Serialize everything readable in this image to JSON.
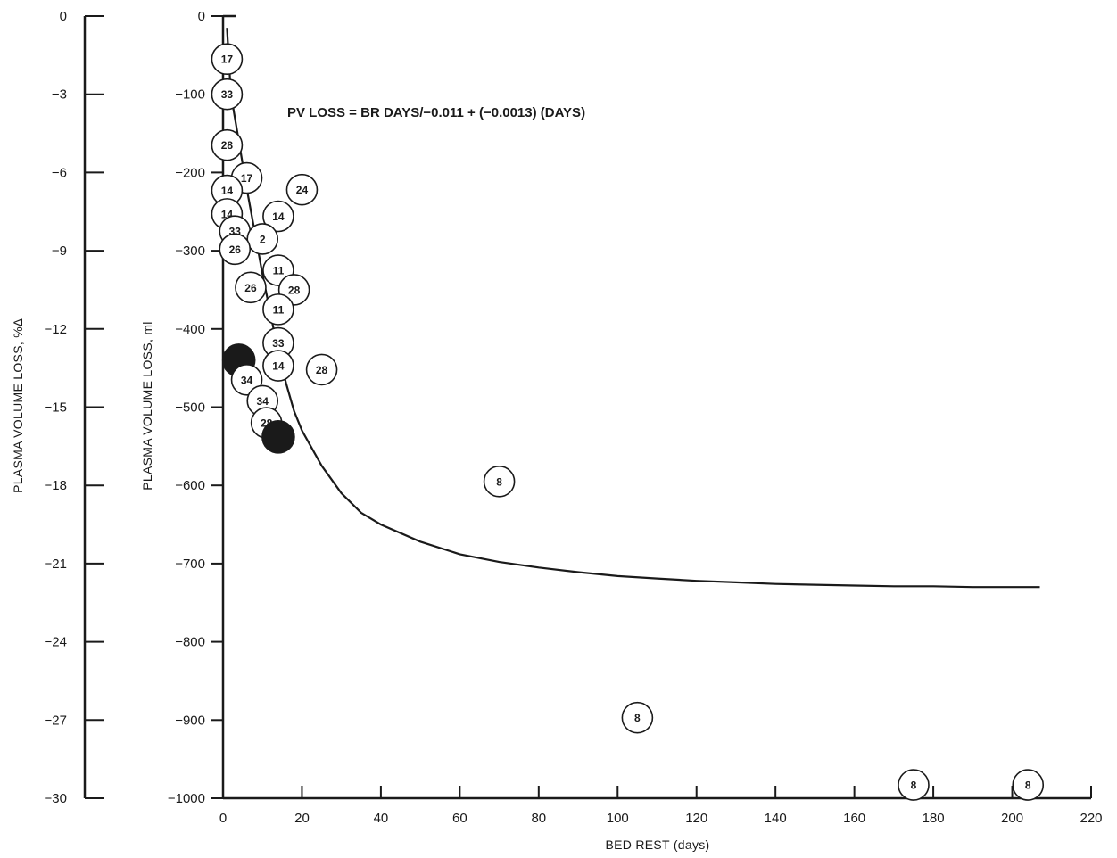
{
  "chart_data": {
    "type": "scatter",
    "title": "",
    "xlabel": "BED REST (days)",
    "ylabel": "PLASMA VOLUME LOSS, ml",
    "ylabel_secondary": "PLASMA VOLUME LOSS, %∆",
    "equation": "PV LOSS = BR DAYS/−0.011 + (−0.0013) (DAYS)",
    "xlim": [
      0,
      220
    ],
    "ylim": [
      -1000,
      0
    ],
    "ylim_secondary": [
      -30,
      0
    ],
    "x_ticks": [
      "0",
      "20",
      "40",
      "60",
      "80",
      "100",
      "120",
      "140",
      "160",
      "180",
      "200",
      "220"
    ],
    "y_ticks": [
      "0",
      "−100",
      "−200",
      "−300",
      "−400",
      "−500",
      "−600",
      "−700",
      "−800",
      "−900",
      "−1000"
    ],
    "y2_ticks": [
      "0",
      "−3",
      "−6",
      "−9",
      "−12",
      "−15",
      "−18",
      "−21",
      "−24",
      "−27",
      "−30"
    ],
    "grid": false,
    "legend": "none",
    "line_color": "#1a1a1a",
    "fill_color_solid": "#1a1a1a",
    "points": [
      {
        "x": 1,
        "y": -55,
        "label": "17",
        "filled": false
      },
      {
        "x": 1,
        "y": -100,
        "label": "33",
        "filled": false
      },
      {
        "x": 1,
        "y": -165,
        "label": "28",
        "filled": false
      },
      {
        "x": 6,
        "y": -207,
        "label": "17",
        "filled": false
      },
      {
        "x": 1,
        "y": -223,
        "label": "14",
        "filled": false
      },
      {
        "x": 20,
        "y": -222,
        "label": "24",
        "filled": false
      },
      {
        "x": 1,
        "y": -253,
        "label": "14",
        "filled": false
      },
      {
        "x": 14,
        "y": -256,
        "label": "14",
        "filled": false
      },
      {
        "x": 3,
        "y": -275,
        "label": "33",
        "filled": false
      },
      {
        "x": 10,
        "y": -285,
        "label": "2",
        "filled": false
      },
      {
        "x": 3,
        "y": -298,
        "label": "26",
        "filled": false
      },
      {
        "x": 14,
        "y": -325,
        "label": "11",
        "filled": false
      },
      {
        "x": 7,
        "y": -347,
        "label": "26",
        "filled": false
      },
      {
        "x": 18,
        "y": -350,
        "label": "28",
        "filled": false
      },
      {
        "x": 14,
        "y": -375,
        "label": "11",
        "filled": false
      },
      {
        "x": 14,
        "y": -418,
        "label": "33",
        "filled": false
      },
      {
        "x": 4,
        "y": -440,
        "label": "",
        "filled": true
      },
      {
        "x": 14,
        "y": -447,
        "label": "14",
        "filled": false
      },
      {
        "x": 25,
        "y": -452,
        "label": "28",
        "filled": false
      },
      {
        "x": 6,
        "y": -465,
        "label": "34",
        "filled": false
      },
      {
        "x": 10,
        "y": -492,
        "label": "34",
        "filled": false
      },
      {
        "x": 11,
        "y": -520,
        "label": "28",
        "filled": false
      },
      {
        "x": 14,
        "y": -538,
        "label": "",
        "filled": true
      },
      {
        "x": 70,
        "y": -595,
        "label": "8",
        "filled": false
      },
      {
        "x": 105,
        "y": -897,
        "label": "8",
        "filled": false
      },
      {
        "x": 175,
        "y": -983,
        "label": "8",
        "filled": false
      },
      {
        "x": 204,
        "y": -983,
        "label": "8",
        "filled": false
      }
    ],
    "curve": {
      "x": [
        1,
        2,
        4,
        6,
        8,
        10,
        12,
        14,
        16,
        18,
        20,
        25,
        30,
        35,
        40,
        50,
        60,
        70,
        80,
        90,
        100,
        110,
        120,
        130,
        140,
        150,
        160,
        170,
        180,
        190,
        200,
        207
      ],
      "y": [
        -15,
        -100,
        -160,
        -220,
        -275,
        -330,
        -380,
        -430,
        -470,
        -505,
        -530,
        -575,
        -610,
        -635,
        -650,
        -672,
        -688,
        -698,
        -705,
        -711,
        -716,
        -719,
        -722,
        -724,
        -726,
        -727,
        -728,
        -729,
        -729,
        -730,
        -730,
        -730
      ]
    }
  }
}
